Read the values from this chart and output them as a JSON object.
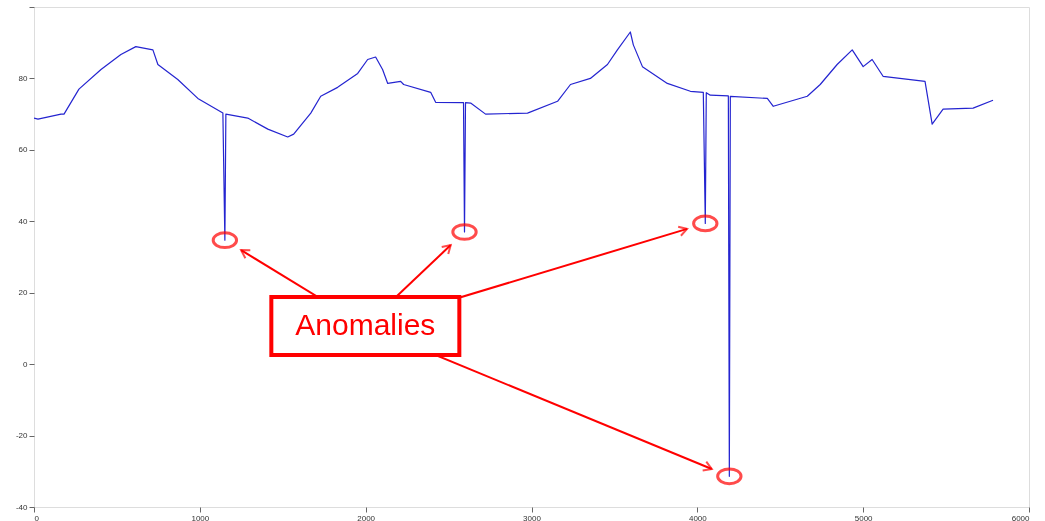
{
  "chart_data": {
    "type": "line",
    "xlim": [
      0,
      6000
    ],
    "ylim": [
      -40,
      100
    ],
    "xticks": [
      0,
      1000,
      2000,
      3000,
      4000,
      5000,
      6000
    ],
    "yticks": [
      {
        "value": -40,
        "label": "-40"
      },
      {
        "value": -20,
        "label": "-20"
      },
      {
        "value": 0,
        "label": "0"
      },
      {
        "value": 20,
        "label": "20"
      },
      {
        "value": 40,
        "label": "40"
      },
      {
        "value": 60,
        "label": "60"
      },
      {
        "value": 80,
        "label": "80"
      },
      {
        "value": 100,
        "label": null
      }
    ],
    "grid": false,
    "marker": "none",
    "line_style": "solid",
    "annotations": [
      "Anomalies"
    ],
    "series": [
      {
        "color": "#2424d0",
        "x": [
          0,
          24,
          163,
          181,
          271,
          404,
          524,
          614,
          717,
          747,
          867,
          988,
          1139,
          1151,
          1157,
          1289,
          1410,
          1530,
          1566,
          1669,
          1729,
          1831,
          1952,
          2012,
          2060,
          2102,
          2133,
          2211,
          2229,
          2392,
          2422,
          2590,
          2596,
          2602,
          2633,
          2723,
          2976,
          3157,
          3235,
          3355,
          3458,
          3518,
          3596,
          3614,
          3669,
          3819,
          3958,
          4036,
          4048,
          4054,
          4078,
          4187,
          4193,
          4199,
          4422,
          4458,
          4663,
          4741,
          4843,
          4934,
          5000,
          5054,
          5120,
          5373,
          5416,
          5482,
          5663,
          5783
        ],
        "values": [
          68.9,
          68.6,
          70,
          70,
          77,
          82.5,
          86.7,
          88.9,
          88,
          83.9,
          79.7,
          74.4,
          70.3,
          34.7,
          70,
          68.9,
          65.8,
          63.6,
          64.4,
          70.3,
          75,
          77.5,
          81.4,
          85.3,
          86,
          82.5,
          78.6,
          79.2,
          78.3,
          76.1,
          73.3,
          73.2,
          37,
          73.2,
          73.1,
          70,
          70.3,
          73.6,
          78.3,
          80,
          83.9,
          88,
          93,
          89.4,
          83.3,
          78.6,
          76.4,
          76.1,
          39.4,
          76,
          75.3,
          75.1,
          -31.4,
          75,
          74.4,
          72.2,
          75,
          78.3,
          83.9,
          88,
          83.3,
          85.3,
          80.6,
          79.2,
          67.2,
          71.4,
          71.7,
          73.9
        ]
      }
    ]
  }
}
